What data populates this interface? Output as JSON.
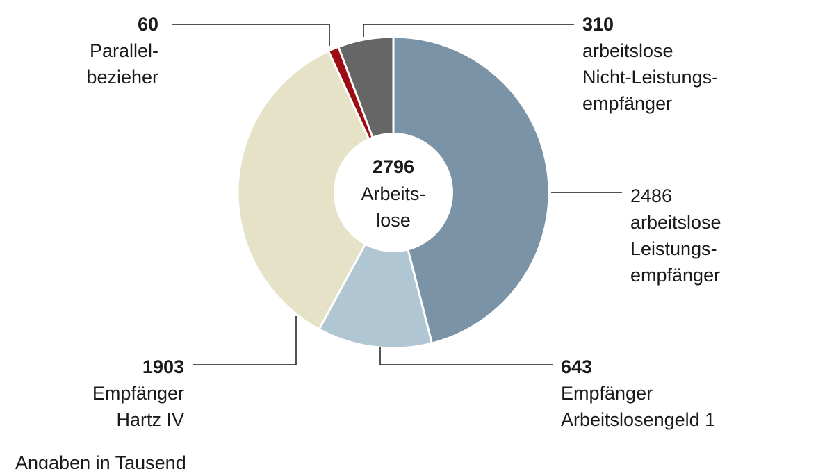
{
  "chart_data": {
    "type": "pie",
    "categories": [
      [
        "arbeitslose",
        "Leistungs-",
        "empfänger"
      ],
      [
        "Empfänger",
        "Arbeitslosengeld 1"
      ],
      [
        "Empfänger",
        "Hartz IV"
      ],
      [
        "Parallel-",
        "bezieher"
      ],
      [
        "arbeitslose",
        "Nicht-Leistungs-",
        "empfänger"
      ]
    ],
    "values": [
      2486,
      643,
      1903,
      60,
      310
    ],
    "colors": [
      "#7b93a6",
      "#b0c6d3",
      "#e6e2c8",
      "#9b0d12",
      "#666666"
    ],
    "bold_values": [
      false,
      true,
      true,
      true,
      true
    ],
    "total": 2796,
    "center_label": [
      "Arbeits-",
      "lose"
    ],
    "note": "Angaben in Tausend"
  }
}
